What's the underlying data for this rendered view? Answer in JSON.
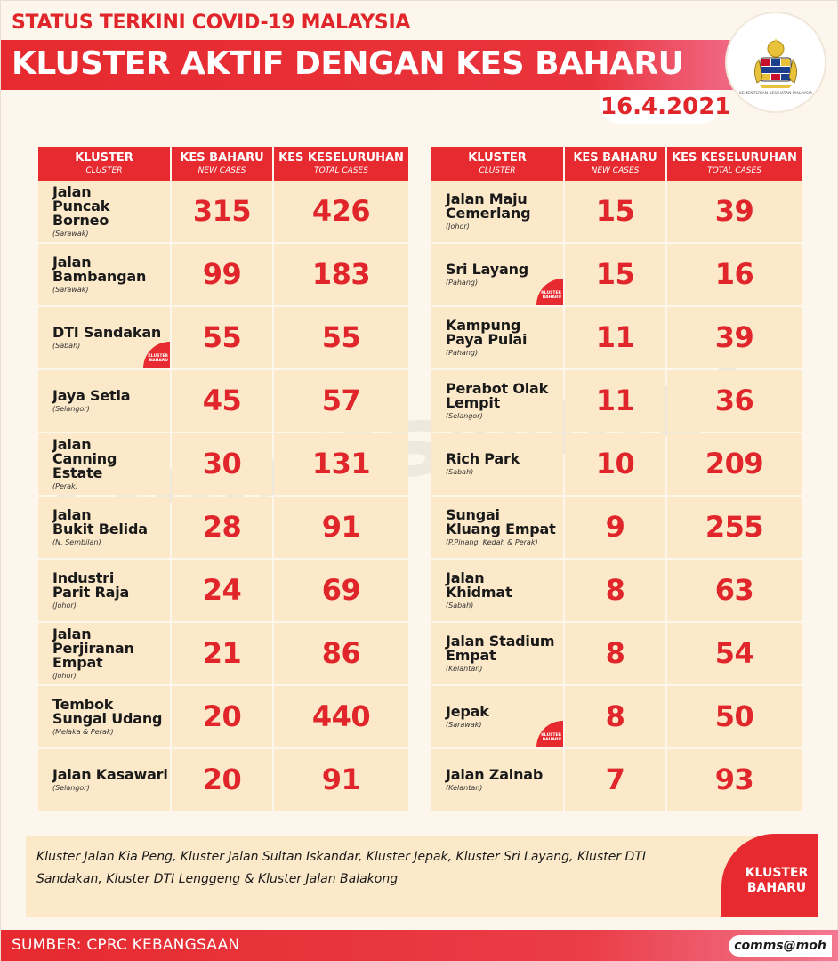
{
  "header": {
    "supertitle": "STATUS TERKINI COVID-19 MALAYSIA",
    "title": "KLUSTER AKTIF DENGAN KES BAHARU",
    "date": "16.4.2021",
    "logo_icon": "coat-of-arms-icon",
    "logo_text": "KEMENTERIAN KESIHATAN MALAYSIA"
  },
  "table_headers": {
    "cluster": "KLUSTER",
    "cluster_sub": "CLUSTER",
    "new": "KES BAHARU",
    "new_sub": "NEW CASES",
    "total": "KES KESELURUHAN",
    "total_sub": "TOTAL CASES"
  },
  "left_rows": [
    {
      "name": "Jalan\nPuncak Borneo",
      "state": "(Sarawak)",
      "new": "315",
      "total": "426",
      "badge": ""
    },
    {
      "name": "Jalan\nBambangan",
      "state": "(Sarawak)",
      "new": "99",
      "total": "183",
      "badge": ""
    },
    {
      "name": "DTI Sandakan",
      "state": "(Sabah)",
      "new": "55",
      "total": "55",
      "badge": "KLUSTER BAHARU"
    },
    {
      "name": "Jaya Setia",
      "state": "(Selangor)",
      "new": "45",
      "total": "57",
      "badge": ""
    },
    {
      "name": "Jalan\nCanning Estate",
      "state": "(Perak)",
      "new": "30",
      "total": "131",
      "badge": ""
    },
    {
      "name": "Jalan\nBukit Belida",
      "state": "(N. Sembilan)",
      "new": "28",
      "total": "91",
      "badge": ""
    },
    {
      "name": "Industri\nParit Raja",
      "state": "(Johor)",
      "new": "24",
      "total": "69",
      "badge": ""
    },
    {
      "name": "Jalan Perjiranan\nEmpat",
      "state": "(Johor)",
      "new": "21",
      "total": "86",
      "badge": ""
    },
    {
      "name": "Tembok\nSungai Udang",
      "state": "(Melaka & Perak)",
      "new": "20",
      "total": "440",
      "badge": ""
    },
    {
      "name": "Jalan Kasawari",
      "state": "(Selangor)",
      "new": "20",
      "total": "91",
      "badge": ""
    }
  ],
  "right_rows": [
    {
      "name": "Jalan Maju\nCemerlang",
      "state": "(Johor)",
      "new": "15",
      "total": "39",
      "badge": ""
    },
    {
      "name": "Sri Layang",
      "state": "(Pahang)",
      "new": "15",
      "total": "16",
      "badge": "KLUSTER BAHARU"
    },
    {
      "name": "Kampung\nPaya Pulai",
      "state": "(Pahang)",
      "new": "11",
      "total": "39",
      "badge": ""
    },
    {
      "name": "Perabot Olak\nLempit",
      "state": "(Selangor)",
      "new": "11",
      "total": "36",
      "badge": ""
    },
    {
      "name": "Rich Park",
      "state": "(Sabah)",
      "new": "10",
      "total": "209",
      "badge": ""
    },
    {
      "name": "Sungai\nKluang Empat",
      "state": "(P.Pinang, Kedah & Perak)",
      "new": "9",
      "total": "255",
      "badge": ""
    },
    {
      "name": "Jalan\nKhidmat",
      "state": "(Sabah)",
      "new": "8",
      "total": "63",
      "badge": ""
    },
    {
      "name": "Jalan Stadium\nEmpat",
      "state": "(Kelantan)",
      "new": "8",
      "total": "54",
      "badge": ""
    },
    {
      "name": "Jepak",
      "state": "(Sarawak)",
      "new": "8",
      "total": "50",
      "badge": "KLUSTER BAHARU"
    },
    {
      "name": "Jalan Zainab",
      "state": "(Kelantan)",
      "new": "7",
      "total": "93",
      "badge": ""
    }
  ],
  "watermark": "comms@moh",
  "note": "Kluster Jalan Kia Peng, Kluster Jalan Sultan Iskandar, Kluster Jepak, Kluster Sri Layang, Kluster  DTI Sandakan, Kluster DTI Lenggeng & Kluster Jalan Balakong",
  "note_badge": "KLUSTER\nBAHARU",
  "footer": {
    "source": "SUMBER: CPRC KEBANGSAAN",
    "brand": "comms@moh"
  },
  "colors": {
    "accent": "#e1262b",
    "cell_bg": "#fbe9c9",
    "page_bg": "#fdf6ec"
  }
}
